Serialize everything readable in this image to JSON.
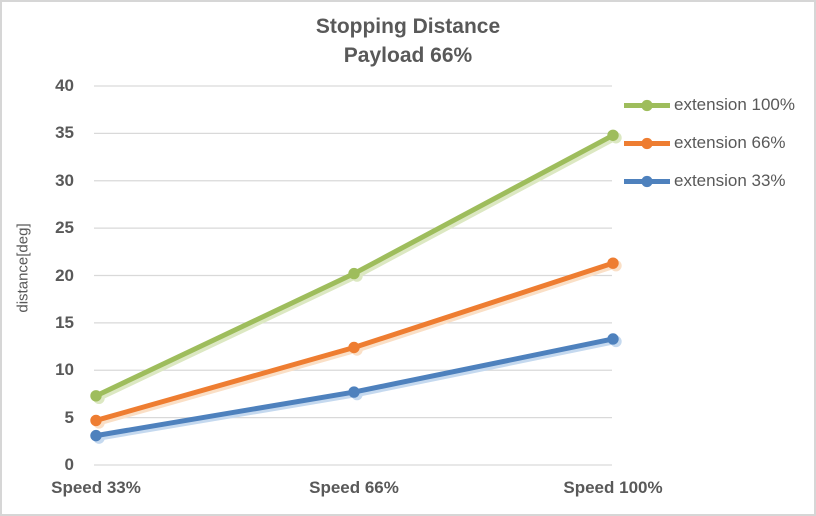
{
  "chart_data": {
    "type": "line",
    "title_line1": "Stopping Distance",
    "title_line2": "Payload 66%",
    "ylabel": "distance[deg]",
    "xlabel": "",
    "categories": [
      "Speed 33%",
      "Speed 66%",
      "Speed 100%"
    ],
    "series": [
      {
        "name": "extension 100%",
        "color": "#9EBD5C",
        "shadow": "#DCE8C2",
        "values": [
          7.3,
          20.2,
          34.8
        ]
      },
      {
        "name": "extension 66%",
        "color": "#EE7D31",
        "shadow": "#FADFC6",
        "values": [
          4.7,
          12.4,
          21.3
        ]
      },
      {
        "name": "extension 33%",
        "color": "#4E81BD",
        "shadow": "#C5D9EF",
        "values": [
          3.1,
          7.7,
          13.3
        ]
      }
    ],
    "ylim": [
      0,
      40
    ],
    "ytick_step": 5,
    "grid": true,
    "legend_position": "right",
    "marker": "circle",
    "colors": {
      "text": "#595959",
      "gridline": "#D9D9D9",
      "border": "#D6D6D6",
      "background": "#FFFFFF"
    }
  }
}
